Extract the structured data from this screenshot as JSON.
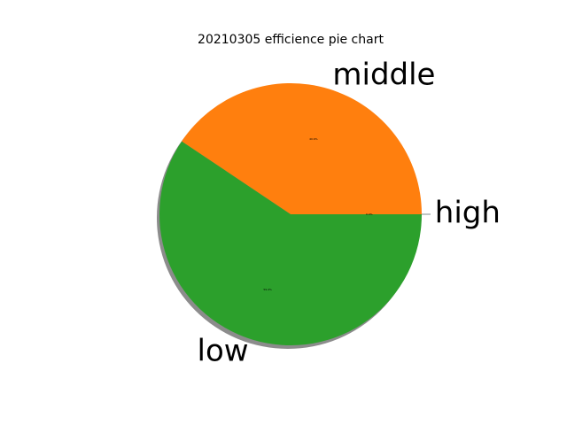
{
  "chart_data": {
    "type": "pie",
    "title": "20210305 efficience pie chart",
    "shadow": true,
    "start_angle_deg": 0,
    "direction": "counterclockwise",
    "slices": [
      {
        "label": "high",
        "value": 0.0,
        "color": "#1f77b4",
        "pct_text": "0.0%"
      },
      {
        "label": "middle",
        "value": 40.6,
        "color": "#ff7f0e",
        "pct_text": "40.6%"
      },
      {
        "label": "low",
        "value": 59.4,
        "color": "#2ca02c",
        "pct_text": "59.4%"
      }
    ]
  }
}
